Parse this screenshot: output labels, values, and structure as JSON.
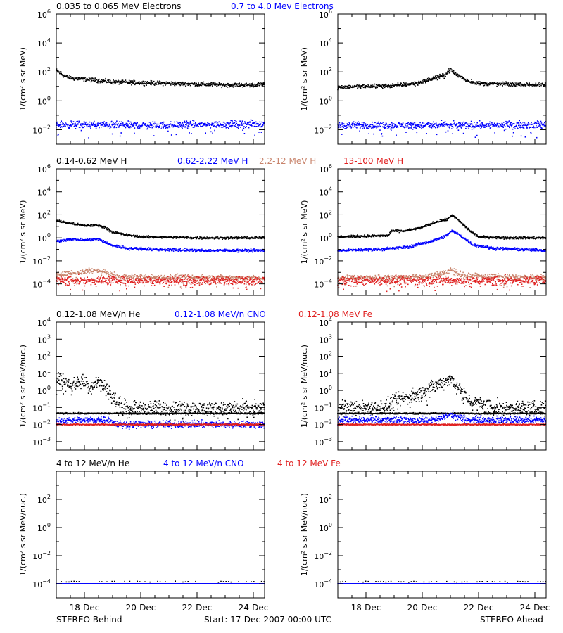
{
  "footer": {
    "left": "STEREO Behind",
    "center": "Start: 17-Dec-2007 00:00 UTC",
    "right": "STEREO Ahead"
  },
  "x_axis": {
    "days_range": [
      0,
      7.4
    ],
    "tick_labels": [
      "18-Dec",
      "20-Dec",
      "22-Dec",
      "24-Dec"
    ],
    "tick_positions_days": [
      1,
      3,
      5,
      7
    ],
    "minor_tick_spacing_days": 0.5
  },
  "chart_data": [
    {
      "id": "electrons",
      "type": "scatter",
      "yscale": "log",
      "ylabel": "1/(cm² s sr MeV)",
      "ylim_exp": [
        -3,
        6
      ],
      "ytick_exps": [
        -2,
        0,
        2,
        4,
        6
      ],
      "legend": [
        {
          "text": "0.035 to 0.065 MeV Electrons",
          "color": "#000000"
        },
        {
          "text": "0.7 to 4.0 Mev Electrons",
          "color": "#0000ff"
        }
      ],
      "panels": [
        {
          "side": "behind",
          "series": [
            {
              "color": "#000000",
              "points": [
                [
                  0,
                  2.1
                ],
                [
                  0.3,
                  1.7
                ],
                [
                  0.6,
                  1.55
                ],
                [
                  1,
                  1.5
                ],
                [
                  1.5,
                  1.4
                ],
                [
                  2,
                  1.3
                ],
                [
                  3,
                  1.25
                ],
                [
                  4,
                  1.2
                ],
                [
                  5,
                  1.15
                ],
                [
                  6,
                  1.1
                ],
                [
                  7,
                  1.1
                ],
                [
                  7.4,
                  1.15
                ]
              ],
              "spread": 0.07
            },
            {
              "color": "#0000ff",
              "points": [
                [
                  0,
                  -1.65
                ],
                [
                  3.5,
                  -1.7
                ],
                [
                  7.4,
                  -1.6
                ]
              ],
              "spread": 0.12
            }
          ]
        },
        {
          "side": "ahead",
          "series": [
            {
              "color": "#000000",
              "points": [
                [
                  0,
                  0.95
                ],
                [
                  1,
                  1.0
                ],
                [
                  2,
                  1.05
                ],
                [
                  2.8,
                  1.2
                ],
                [
                  3.3,
                  1.5
                ],
                [
                  3.8,
                  1.75
                ],
                [
                  4.0,
                  2.2
                ],
                [
                  4.1,
                  1.95
                ],
                [
                  4.6,
                  1.4
                ],
                [
                  5,
                  1.2
                ],
                [
                  6,
                  1.15
                ],
                [
                  7.4,
                  1.1
                ]
              ],
              "spread": 0.07
            },
            {
              "color": "#0000ff",
              "points": [
                [
                  0,
                  -1.7
                ],
                [
                  3.5,
                  -1.7
                ],
                [
                  7.4,
                  -1.65
                ]
              ],
              "spread": 0.12
            }
          ]
        }
      ]
    },
    {
      "id": "protons",
      "type": "scatter",
      "yscale": "log",
      "ylabel": "1/(cm² s sr MeV)",
      "ylim_exp": [
        -5,
        6
      ],
      "ytick_exps": [
        -4,
        -2,
        0,
        2,
        4,
        6
      ],
      "legend": [
        {
          "text": "0.14-0.62 MeV H",
          "color": "#000000"
        },
        {
          "text": "0.62-2.22 MeV H",
          "color": "#0000ff"
        },
        {
          "text": "2.2-12 MeV H",
          "color": "#c8846c"
        },
        {
          "text": "13-100 MeV H",
          "color": "#e02020"
        }
      ],
      "panels": [
        {
          "side": "behind",
          "series": [
            {
              "color": "#000000",
              "points": [
                [
                  0,
                  1.5
                ],
                [
                  0.4,
                  1.3
                ],
                [
                  1,
                  1.05
                ],
                [
                  1.4,
                  1.1
                ],
                [
                  1.7,
                  0.95
                ],
                [
                  2.0,
                  0.5
                ],
                [
                  2.5,
                  0.25
                ],
                [
                  3,
                  0.1
                ],
                [
                  4,
                  0.05
                ],
                [
                  5,
                  0.0
                ],
                [
                  6,
                  0.0
                ],
                [
                  7.4,
                  0.0
                ]
              ],
              "spread": 0.05
            },
            {
              "color": "#0000ff",
              "points": [
                [
                  0,
                  -0.3
                ],
                [
                  0.5,
                  -0.1
                ],
                [
                  1,
                  -0.2
                ],
                [
                  1.5,
                  -0.1
                ],
                [
                  1.9,
                  -0.6
                ],
                [
                  2.5,
                  -0.9
                ],
                [
                  3.5,
                  -1.0
                ],
                [
                  5,
                  -1.1
                ],
                [
                  7.4,
                  -1.1
                ]
              ],
              "spread": 0.06
            },
            {
              "color": "#c8846c",
              "points": [
                [
                  0,
                  -3.2
                ],
                [
                  0.8,
                  -3.1
                ],
                [
                  1.2,
                  -2.8
                ],
                [
                  1.7,
                  -3.0
                ],
                [
                  2.2,
                  -3.4
                ],
                [
                  7.4,
                  -3.5
                ]
              ],
              "spread": 0.12
            },
            {
              "color": "#e02020",
              "points": [
                [
                  0,
                  -3.7
                ],
                [
                  7.4,
                  -3.7
                ]
              ],
              "spread": 0.18
            }
          ]
        },
        {
          "side": "ahead",
          "series": [
            {
              "color": "#000000",
              "points": [
                [
                  0,
                  0.1
                ],
                [
                  1,
                  0.15
                ],
                [
                  1.8,
                  0.2
                ],
                [
                  1.9,
                  0.6
                ],
                [
                  2.4,
                  0.6
                ],
                [
                  3,
                  0.9
                ],
                [
                  3.5,
                  1.4
                ],
                [
                  3.9,
                  1.6
                ],
                [
                  4.05,
                  2.0
                ],
                [
                  4.3,
                  1.5
                ],
                [
                  4.7,
                  0.6
                ],
                [
                  5,
                  0.1
                ],
                [
                  6,
                  0.0
                ],
                [
                  7.4,
                  0.0
                ]
              ],
              "spread": 0.05
            },
            {
              "color": "#0000ff",
              "points": [
                [
                  0,
                  -1.1
                ],
                [
                  1.5,
                  -1.0
                ],
                [
                  2.5,
                  -0.8
                ],
                [
                  3.3,
                  -0.3
                ],
                [
                  3.8,
                  0.1
                ],
                [
                  4.05,
                  0.6
                ],
                [
                  4.3,
                  0.3
                ],
                [
                  4.8,
                  -0.6
                ],
                [
                  5.5,
                  -0.9
                ],
                [
                  7.4,
                  -1.1
                ]
              ],
              "spread": 0.06
            },
            {
              "color": "#c8846c",
              "points": [
                [
                  0,
                  -3.5
                ],
                [
                  3.2,
                  -3.4
                ],
                [
                  3.8,
                  -3.0
                ],
                [
                  4.1,
                  -2.8
                ],
                [
                  4.5,
                  -3.3
                ],
                [
                  7.4,
                  -3.5
                ]
              ],
              "spread": 0.12
            },
            {
              "color": "#e02020",
              "points": [
                [
                  0,
                  -3.7
                ],
                [
                  7.4,
                  -3.7
                ]
              ],
              "spread": 0.18
            }
          ]
        }
      ]
    },
    {
      "id": "ions-low",
      "type": "scatter",
      "yscale": "log",
      "ylabel": "1/(cm² s sr MeV/nuc.)",
      "ylim_exp": [
        -3.5,
        4
      ],
      "ytick_exps": [
        -3,
        -2,
        -1,
        0,
        1,
        2,
        3,
        4
      ],
      "legend": [
        {
          "text": "0.12-1.08 MeV/n He",
          "color": "#000000"
        },
        {
          "text": "0.12-1.08 MeV/n CNO",
          "color": "#0000ff"
        },
        {
          "text": "0.12-1.08 MeV Fe",
          "color": "#e02020"
        }
      ],
      "panels": [
        {
          "side": "behind",
          "series": [
            {
              "color": "#000000",
              "points": [
                [
                  0,
                  0.7
                ],
                [
                  0.3,
                  0.5
                ],
                [
                  0.6,
                  0.3
                ],
                [
                  0.9,
                  0.6
                ],
                [
                  1.2,
                  0.2
                ],
                [
                  1.5,
                  0.6
                ],
                [
                  1.8,
                  0.1
                ],
                [
                  2.0,
                  -0.4
                ],
                [
                  2.2,
                  -0.8
                ],
                [
                  2.5,
                  -1.0
                ],
                [
                  4,
                  -1.05
                ],
                [
                  7.4,
                  -1.05
                ]
              ],
              "spread": 0.2
            },
            {
              "color": "#000000",
              "points": [
                [
                  0,
                  -1.35
                ],
                [
                  7.4,
                  -1.35
                ]
              ],
              "spread": 0.02
            },
            {
              "color": "#0000ff",
              "points": [
                [
                  0,
                  -1.8
                ],
                [
                  1.8,
                  -1.7
                ],
                [
                  2.2,
                  -2.0
                ],
                [
                  7.4,
                  -2.0
                ]
              ],
              "spread": 0.1
            },
            {
              "color": "#e02020",
              "points": [
                [
                  0,
                  -2.0
                ],
                [
                  7.4,
                  -2.0
                ]
              ],
              "spread": 0.02
            }
          ]
        },
        {
          "side": "ahead",
          "series": [
            {
              "color": "#000000",
              "points": [
                [
                  0,
                  -1.0
                ],
                [
                  1.7,
                  -1.0
                ],
                [
                  2.0,
                  -0.6
                ],
                [
                  2.5,
                  -0.4
                ],
                [
                  3,
                  -0.1
                ],
                [
                  3.5,
                  0.3
                ],
                [
                  4.0,
                  0.7
                ],
                [
                  4.3,
                  0.2
                ],
                [
                  4.6,
                  -0.5
                ],
                [
                  5,
                  -0.8
                ],
                [
                  5.5,
                  -1.0
                ],
                [
                  7.4,
                  -1.05
                ]
              ],
              "spread": 0.2
            },
            {
              "color": "#000000",
              "points": [
                [
                  0,
                  -1.35
                ],
                [
                  7.4,
                  -1.35
                ]
              ],
              "spread": 0.02
            },
            {
              "color": "#0000ff",
              "points": [
                [
                  0,
                  -1.75
                ],
                [
                  3.5,
                  -1.75
                ],
                [
                  4.0,
                  -1.4
                ],
                [
                  4.5,
                  -1.7
                ],
                [
                  7.4,
                  -1.75
                ]
              ],
              "spread": 0.1
            },
            {
              "color": "#e02020",
              "points": [
                [
                  0,
                  -2.0
                ],
                [
                  7.4,
                  -2.0
                ]
              ],
              "spread": 0.02
            }
          ]
        }
      ]
    },
    {
      "id": "ions-high",
      "type": "scatter",
      "yscale": "log",
      "ylabel": "1/(cm² s sr MeV/nuc.)",
      "ylim_exp": [
        -5,
        4
      ],
      "ytick_exps": [
        -4,
        -2,
        0,
        2
      ],
      "legend": [
        {
          "text": "4 to 12 MeV/n He",
          "color": "#000000"
        },
        {
          "text": "4 to 12 MeV/n CNO",
          "color": "#0000ff"
        },
        {
          "text": "4 to 12 MeV Fe",
          "color": "#e02020"
        }
      ],
      "panels": [
        {
          "side": "behind",
          "series": [
            {
              "color": "#0000ff",
              "points": [
                [
                  0,
                  -4.0
                ],
                [
                  7.4,
                  -4.0
                ]
              ],
              "spread": 0.0
            },
            {
              "color": "#000000",
              "points": [
                [
                  0,
                  -3.85
                ],
                [
                  7.4,
                  -3.85
                ]
              ],
              "spread": 0.02,
              "sparse": true
            }
          ]
        },
        {
          "side": "ahead",
          "series": [
            {
              "color": "#0000ff",
              "points": [
                [
                  0,
                  -4.0
                ],
                [
                  7.4,
                  -4.0
                ]
              ],
              "spread": 0.0
            },
            {
              "color": "#000000",
              "points": [
                [
                  0,
                  -3.85
                ],
                [
                  7.4,
                  -3.85
                ]
              ],
              "spread": 0.02,
              "sparse": true
            }
          ]
        }
      ]
    }
  ]
}
